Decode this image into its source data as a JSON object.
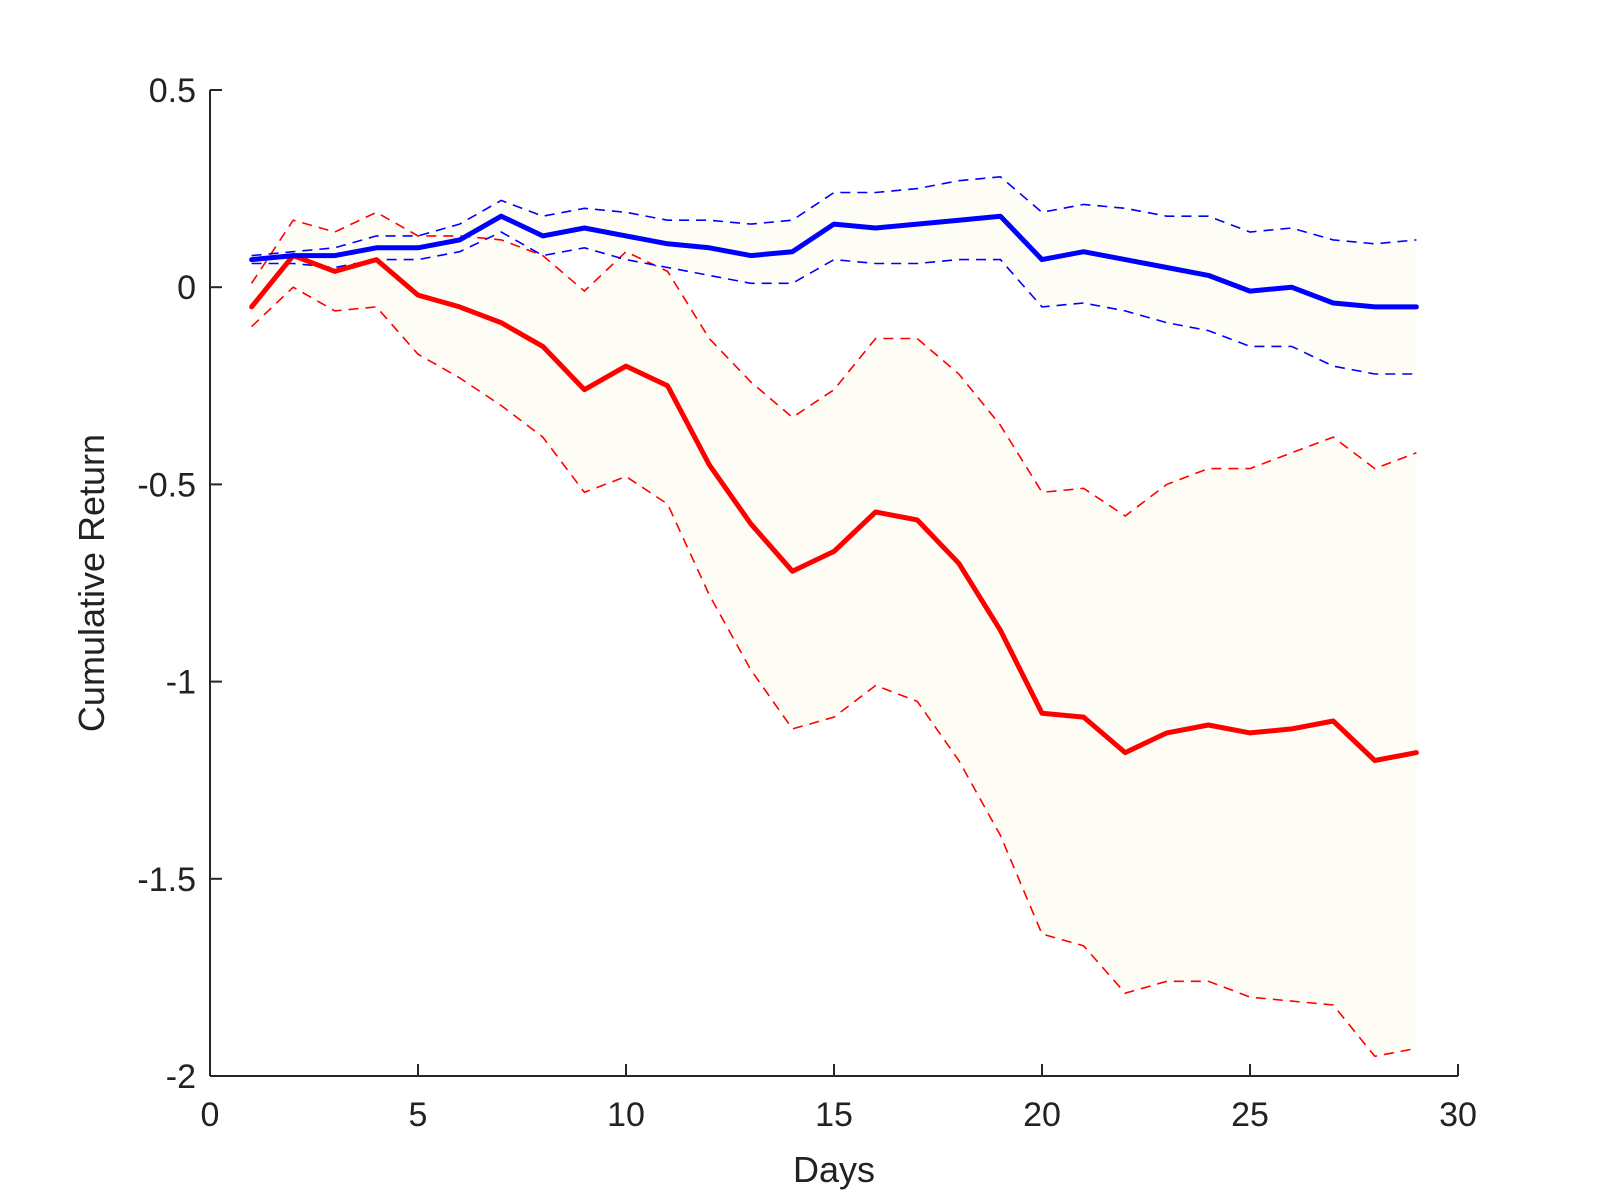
{
  "chart_data": {
    "type": "line",
    "title": "",
    "xlabel": "Days",
    "ylabel": "Cumulative Return",
    "xlim": [
      0,
      30
    ],
    "ylim": [
      -2,
      0.5
    ],
    "xticks": [
      0,
      5,
      10,
      15,
      20,
      25,
      30
    ],
    "xtick_labels": [
      "0",
      "5",
      "10",
      "15",
      "20",
      "25",
      "30"
    ],
    "yticks": [
      0.5,
      0,
      -0.5,
      -1,
      -1.5,
      -2
    ],
    "ytick_labels": [
      "0.5",
      "0",
      "-0.5",
      "-1",
      "-1.5",
      "-2"
    ],
    "grid": false,
    "legend": "none",
    "x": [
      1,
      2,
      3,
      4,
      5,
      6,
      7,
      8,
      9,
      10,
      11,
      12,
      13,
      14,
      15,
      16,
      17,
      18,
      19,
      20,
      21,
      22,
      23,
      24,
      25,
      26,
      27,
      28,
      29
    ],
    "band_fill": "#fdfdf6",
    "series": [
      {
        "color": "#ff0000",
        "values": [
          -0.05,
          0.08,
          0.04,
          0.07,
          -0.02,
          -0.05,
          -0.09,
          -0.15,
          -0.26,
          -0.2,
          -0.25,
          -0.45,
          -0.6,
          -0.72,
          -0.67,
          -0.57,
          -0.59,
          -0.7,
          -0.87,
          -1.08,
          -1.09,
          -1.18,
          -1.13,
          -1.11,
          -1.13,
          -1.12,
          -1.1,
          -1.2,
          -1.18
        ],
        "upper": [
          0.01,
          0.17,
          0.14,
          0.19,
          0.13,
          0.13,
          0.12,
          0.08,
          -0.01,
          0.09,
          0.04,
          -0.13,
          -0.24,
          -0.33,
          -0.26,
          -0.13,
          -0.13,
          -0.22,
          -0.35,
          -0.52,
          -0.51,
          -0.58,
          -0.5,
          -0.46,
          -0.46,
          -0.42,
          -0.38,
          -0.46,
          -0.42
        ],
        "lower": [
          -0.1,
          0.0,
          -0.06,
          -0.05,
          -0.17,
          -0.23,
          -0.3,
          -0.38,
          -0.52,
          -0.48,
          -0.55,
          -0.78,
          -0.97,
          -1.12,
          -1.09,
          -1.01,
          -1.05,
          -1.2,
          -1.39,
          -1.64,
          -1.67,
          -1.79,
          -1.76,
          -1.76,
          -1.8,
          -1.81,
          -1.82,
          -1.95,
          -1.93
        ]
      },
      {
        "color": "#0000ff",
        "values": [
          0.07,
          0.08,
          0.08,
          0.1,
          0.1,
          0.12,
          0.18,
          0.13,
          0.15,
          0.13,
          0.11,
          0.1,
          0.08,
          0.09,
          0.16,
          0.15,
          0.16,
          0.17,
          0.18,
          0.07,
          0.09,
          0.07,
          0.05,
          0.03,
          -0.01,
          0.0,
          -0.04,
          -0.05,
          -0.05
        ],
        "upper": [
          0.08,
          0.09,
          0.1,
          0.13,
          0.13,
          0.16,
          0.22,
          0.18,
          0.2,
          0.19,
          0.17,
          0.17,
          0.16,
          0.17,
          0.24,
          0.24,
          0.25,
          0.27,
          0.28,
          0.19,
          0.21,
          0.2,
          0.18,
          0.18,
          0.14,
          0.15,
          0.12,
          0.11,
          0.12
        ],
        "lower": [
          0.06,
          0.06,
          0.05,
          0.07,
          0.07,
          0.09,
          0.14,
          0.08,
          0.1,
          0.07,
          0.05,
          0.03,
          0.01,
          0.01,
          0.07,
          0.06,
          0.06,
          0.07,
          0.07,
          -0.05,
          -0.04,
          -0.06,
          -0.09,
          -0.11,
          -0.15,
          -0.15,
          -0.2,
          -0.22,
          -0.22
        ]
      }
    ]
  }
}
